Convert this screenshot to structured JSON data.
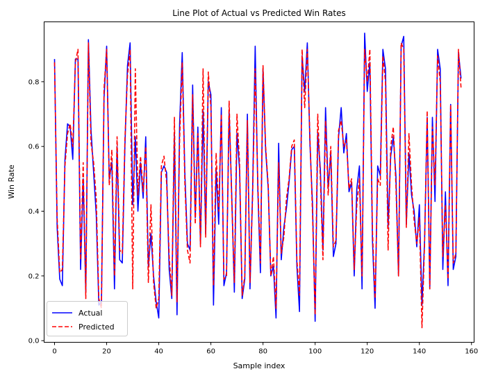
{
  "chart_data": {
    "type": "line",
    "title": "Line Plot of Actual vs Predicted Win Rates",
    "xlabel": "Sample index",
    "ylabel": "Win Rate",
    "xlim": [
      -4,
      161
    ],
    "ylim": [
      -0.005,
      0.985
    ],
    "xticks": [
      "0",
      "20",
      "40",
      "60",
      "80",
      "100",
      "120",
      "140",
      "160"
    ],
    "yticks": [
      "0.0",
      "0.2",
      "0.4",
      "0.6",
      "0.8"
    ],
    "grid": false,
    "legend_position": "lower-left",
    "x_start": 0,
    "series": [
      {
        "name": "Actual",
        "color": "#0000ff",
        "dash": "solid",
        "values": [
          0.87,
          0.35,
          0.19,
          0.17,
          0.56,
          0.67,
          0.66,
          0.56,
          0.87,
          0.87,
          0.22,
          0.5,
          0.15,
          0.93,
          0.65,
          0.52,
          0.39,
          0.11,
          0.12,
          0.75,
          0.91,
          0.5,
          0.55,
          0.16,
          0.6,
          0.25,
          0.24,
          0.6,
          0.85,
          0.92,
          0.42,
          0.63,
          0.4,
          0.55,
          0.44,
          0.63,
          0.23,
          0.33,
          0.2,
          0.12,
          0.07,
          0.52,
          0.54,
          0.52,
          0.22,
          0.13,
          0.64,
          0.08,
          0.67,
          0.89,
          0.52,
          0.3,
          0.28,
          0.79,
          0.38,
          0.66,
          0.3,
          0.71,
          0.33,
          0.8,
          0.76,
          0.11,
          0.53,
          0.36,
          0.72,
          0.17,
          0.21,
          0.71,
          0.45,
          0.15,
          0.64,
          0.53,
          0.13,
          0.19,
          0.7,
          0.16,
          0.46,
          0.91,
          0.47,
          0.21,
          0.84,
          0.59,
          0.47,
          0.2,
          0.23,
          0.07,
          0.61,
          0.25,
          0.35,
          0.41,
          0.49,
          0.59,
          0.6,
          0.23,
          0.09,
          0.88,
          0.77,
          0.92,
          0.61,
          0.42,
          0.06,
          0.64,
          0.53,
          0.28,
          0.72,
          0.47,
          0.58,
          0.26,
          0.3,
          0.63,
          0.72,
          0.58,
          0.64,
          0.46,
          0.49,
          0.2,
          0.47,
          0.54,
          0.16,
          0.95,
          0.77,
          0.86,
          0.31,
          0.1,
          0.54,
          0.51,
          0.9,
          0.84,
          0.35,
          0.57,
          0.63,
          0.51,
          0.2,
          0.91,
          0.94,
          0.36,
          0.58,
          0.45,
          0.4,
          0.29,
          0.42,
          0.11,
          0.31,
          0.69,
          0.16,
          0.69,
          0.43,
          0.9,
          0.84,
          0.22,
          0.46,
          0.17,
          0.73,
          0.22,
          0.26,
          0.89,
          0.81
        ]
      },
      {
        "name": "Predicted",
        "color": "#ff0000",
        "dash": "dashed",
        "values": [
          0.86,
          0.38,
          0.21,
          0.22,
          0.54,
          0.64,
          0.67,
          0.6,
          0.86,
          0.9,
          0.25,
          0.55,
          0.13,
          0.92,
          0.61,
          0.55,
          0.44,
          0.13,
          0.1,
          0.78,
          0.9,
          0.48,
          0.59,
          0.2,
          0.63,
          0.28,
          0.27,
          0.62,
          0.82,
          0.9,
          0.16,
          0.84,
          0.45,
          0.57,
          0.46,
          0.6,
          0.18,
          0.42,
          0.18,
          0.1,
          0.13,
          0.54,
          0.57,
          0.49,
          0.26,
          0.14,
          0.69,
          0.12,
          0.62,
          0.86,
          0.49,
          0.28,
          0.24,
          0.76,
          0.36,
          0.64,
          0.29,
          0.84,
          0.32,
          0.83,
          0.72,
          0.17,
          0.58,
          0.4,
          0.7,
          0.19,
          0.2,
          0.74,
          0.43,
          0.18,
          0.7,
          0.55,
          0.14,
          0.2,
          0.68,
          0.18,
          0.44,
          0.84,
          0.49,
          0.24,
          0.85,
          0.6,
          0.48,
          0.2,
          0.26,
          0.1,
          0.55,
          0.27,
          0.32,
          0.44,
          0.5,
          0.6,
          0.62,
          0.25,
          0.14,
          0.9,
          0.72,
          0.9,
          0.63,
          0.39,
          0.08,
          0.7,
          0.5,
          0.25,
          0.68,
          0.45,
          0.6,
          0.29,
          0.31,
          0.65,
          0.68,
          0.6,
          0.62,
          0.47,
          0.5,
          0.22,
          0.42,
          0.5,
          0.2,
          0.9,
          0.8,
          0.9,
          0.34,
          0.13,
          0.5,
          0.48,
          0.88,
          0.8,
          0.28,
          0.6,
          0.66,
          0.48,
          0.2,
          0.92,
          0.9,
          0.35,
          0.64,
          0.48,
          0.37,
          0.3,
          0.38,
          0.04,
          0.3,
          0.71,
          0.16,
          0.66,
          0.48,
          0.88,
          0.8,
          0.26,
          0.42,
          0.19,
          0.73,
          0.24,
          0.27,
          0.9,
          0.78
        ]
      }
    ]
  }
}
